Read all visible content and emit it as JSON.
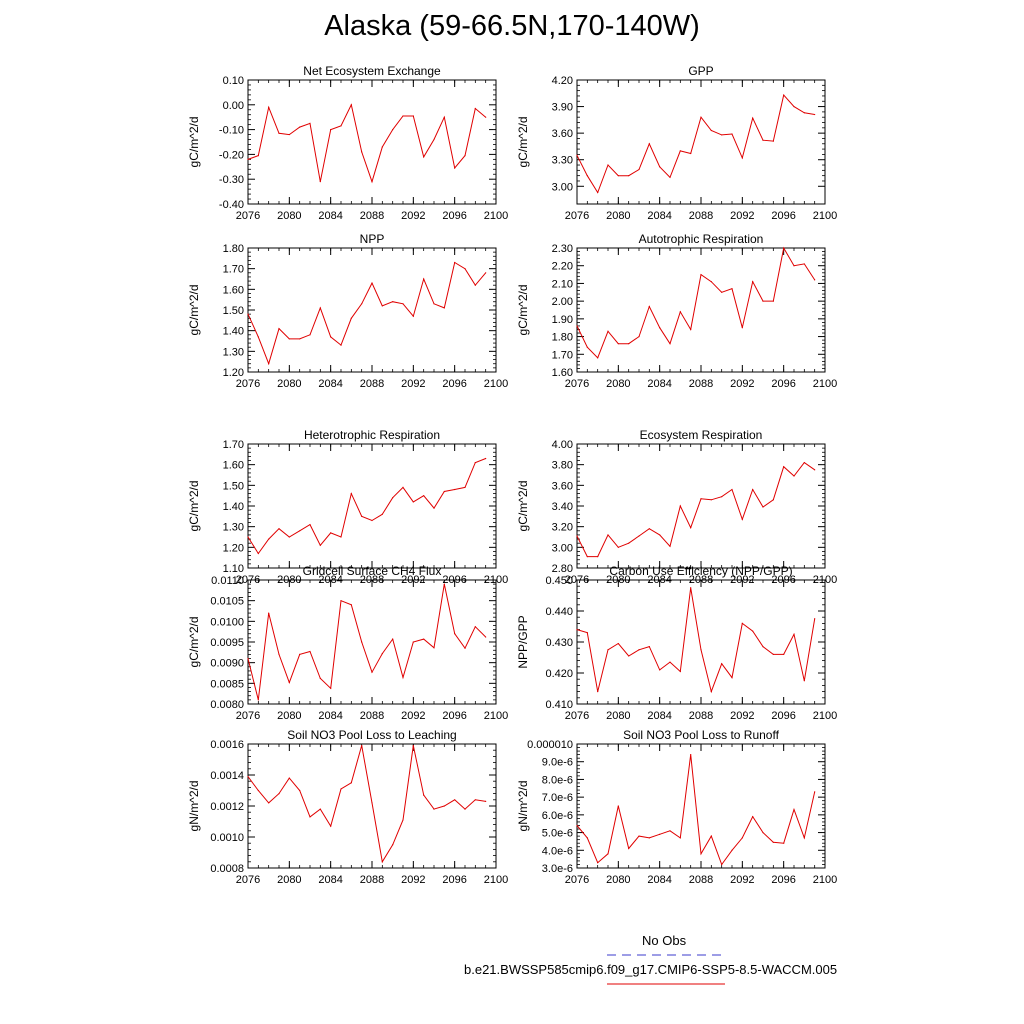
{
  "page": {
    "title": "Alaska (59-66.5N,170-140W)"
  },
  "legend": {
    "obs_label": "No Obs",
    "model_label": "b.e21.BWSSP585cmip6.f09_g17.CMIP6-SSP5-8.5-WACCM.005",
    "obs_color": "#3b3bcc",
    "model_color": "#e00000"
  },
  "chart_data": [
    {
      "type": "line",
      "title": "Net Ecosystem Exchange",
      "ylabel": "gC/m^2/d",
      "xlim": [
        2076,
        2100
      ],
      "ylim": [
        -0.4,
        0.1
      ],
      "xticks": [
        2076,
        2080,
        2084,
        2088,
        2092,
        2096,
        2100
      ],
      "xtick_labels": [
        "2076",
        "2080",
        "2084",
        "2088",
        "2092",
        "2096",
        "2100"
      ],
      "yticks": [
        -0.4,
        -0.3,
        -0.2,
        -0.1,
        0.0,
        0.1
      ],
      "ytick_labels": [
        "-0.40",
        "-0.30",
        "-0.20",
        "-0.10",
        "0.00",
        "0.10"
      ],
      "x": [
        2076,
        2077,
        2078,
        2079,
        2080,
        2081,
        2082,
        2083,
        2084,
        2085,
        2086,
        2087,
        2088,
        2089,
        2090,
        2091,
        2092,
        2093,
        2094,
        2095,
        2096,
        2097,
        2098,
        2099
      ],
      "y": [
        -0.22,
        -0.205,
        -0.01,
        -0.115,
        -0.12,
        -0.09,
        -0.075,
        -0.31,
        -0.1,
        -0.085,
        0.0,
        -0.19,
        -0.31,
        -0.17,
        -0.1,
        -0.045,
        -0.045,
        -0.21,
        -0.14,
        -0.05,
        -0.255,
        -0.205,
        -0.015,
        -0.05
      ]
    },
    {
      "type": "line",
      "title": "GPP",
      "ylabel": "gC/m^2/d",
      "xlim": [
        2076,
        2100
      ],
      "ylim": [
        2.8,
        4.2
      ],
      "xticks": [
        2076,
        2080,
        2084,
        2088,
        2092,
        2096,
        2100
      ],
      "xtick_labels": [
        "2076",
        "2080",
        "2084",
        "2088",
        "2092",
        "2096",
        "2100"
      ],
      "yticks": [
        3.0,
        3.3,
        3.6,
        3.9,
        4.2
      ],
      "ytick_labels": [
        "3.00",
        "3.30",
        "3.60",
        "3.90",
        "4.20"
      ],
      "x": [
        2076,
        2077,
        2078,
        2079,
        2080,
        2081,
        2082,
        2083,
        2084,
        2085,
        2086,
        2087,
        2088,
        2089,
        2090,
        2091,
        2092,
        2093,
        2094,
        2095,
        2096,
        2097,
        2098,
        2099
      ],
      "y": [
        3.35,
        3.12,
        2.93,
        3.24,
        3.12,
        3.12,
        3.19,
        3.48,
        3.22,
        3.1,
        3.4,
        3.37,
        3.78,
        3.63,
        3.58,
        3.59,
        3.32,
        3.77,
        3.52,
        3.51,
        4.03,
        3.9,
        3.83,
        3.81
      ]
    },
    {
      "type": "line",
      "title": "NPP",
      "ylabel": "gC/m^2/d",
      "xlim": [
        2076,
        2100
      ],
      "ylim": [
        1.2,
        1.8
      ],
      "xticks": [
        2076,
        2080,
        2084,
        2088,
        2092,
        2096,
        2100
      ],
      "xtick_labels": [
        "2076",
        "2080",
        "2084",
        "2088",
        "2092",
        "2096",
        "2100"
      ],
      "yticks": [
        1.2,
        1.3,
        1.4,
        1.5,
        1.6,
        1.7,
        1.8
      ],
      "ytick_labels": [
        "1.20",
        "1.30",
        "1.40",
        "1.50",
        "1.60",
        "1.70",
        "1.80"
      ],
      "x": [
        2076,
        2077,
        2078,
        2079,
        2080,
        2081,
        2082,
        2083,
        2084,
        2085,
        2086,
        2087,
        2088,
        2089,
        2090,
        2091,
        2092,
        2093,
        2094,
        2095,
        2096,
        2097,
        2098,
        2099
      ],
      "y": [
        1.48,
        1.37,
        1.24,
        1.41,
        1.36,
        1.36,
        1.38,
        1.51,
        1.37,
        1.33,
        1.46,
        1.53,
        1.63,
        1.52,
        1.54,
        1.53,
        1.47,
        1.65,
        1.53,
        1.51,
        1.73,
        1.7,
        1.62,
        1.68
      ]
    },
    {
      "type": "line",
      "title": "Autotrophic Respiration",
      "ylabel": "gC/m^2/d",
      "xlim": [
        2076,
        2100
      ],
      "ylim": [
        1.6,
        2.3
      ],
      "xticks": [
        2076,
        2080,
        2084,
        2088,
        2092,
        2096,
        2100
      ],
      "xtick_labels": [
        "2076",
        "2080",
        "2084",
        "2088",
        "2092",
        "2096",
        "2100"
      ],
      "yticks": [
        1.6,
        1.7,
        1.8,
        1.9,
        2.0,
        2.1,
        2.2,
        2.3
      ],
      "ytick_labels": [
        "1.60",
        "1.70",
        "1.80",
        "1.90",
        "2.00",
        "2.10",
        "2.20",
        "2.30"
      ],
      "x": [
        2076,
        2077,
        2078,
        2079,
        2080,
        2081,
        2082,
        2083,
        2084,
        2085,
        2086,
        2087,
        2088,
        2089,
        2090,
        2091,
        2092,
        2093,
        2094,
        2095,
        2096,
        2097,
        2098,
        2099
      ],
      "y": [
        1.86,
        1.74,
        1.68,
        1.83,
        1.76,
        1.76,
        1.8,
        1.97,
        1.85,
        1.76,
        1.94,
        1.84,
        2.15,
        2.11,
        2.05,
        2.07,
        1.85,
        2.11,
        2.0,
        2.0,
        2.3,
        2.2,
        2.21,
        2.12
      ]
    },
    {
      "type": "line",
      "title": "Heterotrophic Respiration",
      "ylabel": "gC/m^2/d",
      "xlim": [
        2076,
        2100
      ],
      "ylim": [
        1.1,
        1.7
      ],
      "xticks": [
        2076,
        2080,
        2084,
        2088,
        2092,
        2096,
        2100
      ],
      "xtick_labels": [
        "2076",
        "2080",
        "2084",
        "2088",
        "2092",
        "2096",
        "2100"
      ],
      "yticks": [
        1.1,
        1.2,
        1.3,
        1.4,
        1.5,
        1.6,
        1.7
      ],
      "ytick_labels": [
        "1.10",
        "1.20",
        "1.30",
        "1.40",
        "1.50",
        "1.60",
        "1.70"
      ],
      "x": [
        2076,
        2077,
        2078,
        2079,
        2080,
        2081,
        2082,
        2083,
        2084,
        2085,
        2086,
        2087,
        2088,
        2089,
        2090,
        2091,
        2092,
        2093,
        2094,
        2095,
        2096,
        2097,
        2098,
        2099
      ],
      "y": [
        1.25,
        1.17,
        1.24,
        1.29,
        1.25,
        1.28,
        1.31,
        1.21,
        1.27,
        1.25,
        1.46,
        1.35,
        1.33,
        1.36,
        1.44,
        1.49,
        1.42,
        1.45,
        1.39,
        1.47,
        1.48,
        1.49,
        1.61,
        1.63
      ]
    },
    {
      "type": "line",
      "title": "Ecosystem Respiration",
      "ylabel": "gC/m^2/d",
      "xlim": [
        2076,
        2100
      ],
      "ylim": [
        2.8,
        4.0
      ],
      "xticks": [
        2076,
        2080,
        2084,
        2088,
        2092,
        2096,
        2100
      ],
      "xtick_labels": [
        "2076",
        "2080",
        "2084",
        "2088",
        "2092",
        "2096",
        "2100"
      ],
      "yticks": [
        2.8,
        3.0,
        3.2,
        3.4,
        3.6,
        3.8,
        4.0
      ],
      "ytick_labels": [
        "2.80",
        "3.00",
        "3.20",
        "3.40",
        "3.60",
        "3.80",
        "4.00"
      ],
      "x": [
        2076,
        2077,
        2078,
        2079,
        2080,
        2081,
        2082,
        2083,
        2084,
        2085,
        2086,
        2087,
        2088,
        2089,
        2090,
        2091,
        2092,
        2093,
        2094,
        2095,
        2096,
        2097,
        2098,
        2099
      ],
      "y": [
        3.11,
        2.91,
        2.91,
        3.12,
        3.0,
        3.04,
        3.11,
        3.18,
        3.12,
        3.01,
        3.4,
        3.19,
        3.47,
        3.46,
        3.49,
        3.56,
        3.27,
        3.56,
        3.39,
        3.46,
        3.78,
        3.69,
        3.82,
        3.75
      ]
    },
    {
      "type": "line",
      "title": "Gridcell Surface CH4 Flux",
      "ylabel": "gC/m^2/d",
      "xlim": [
        2076,
        2100
      ],
      "ylim": [
        0.008,
        0.011
      ],
      "xticks": [
        2076,
        2080,
        2084,
        2088,
        2092,
        2096,
        2100
      ],
      "xtick_labels": [
        "2076",
        "2080",
        "2084",
        "2088",
        "2092",
        "2096",
        "2100"
      ],
      "yticks": [
        0.008,
        0.0085,
        0.009,
        0.0095,
        0.01,
        0.0105,
        0.011
      ],
      "ytick_labels": [
        "0.0080",
        "0.0085",
        "0.0090",
        "0.0095",
        "0.0100",
        "0.0105",
        "0.0110"
      ],
      "x": [
        2076,
        2077,
        2078,
        2079,
        2080,
        2081,
        2082,
        2083,
        2084,
        2085,
        2086,
        2087,
        2088,
        2089,
        2090,
        2091,
        2092,
        2093,
        2094,
        2095,
        2096,
        2097,
        2098,
        2099
      ],
      "y": [
        0.0091,
        0.0081,
        0.0102,
        0.0092,
        0.00852,
        0.0092,
        0.00927,
        0.00862,
        0.00838,
        0.0105,
        0.0104,
        0.0095,
        0.00877,
        0.00922,
        0.00957,
        0.00864,
        0.0095,
        0.00957,
        0.00936,
        0.0109,
        0.0097,
        0.00935,
        0.00987,
        0.00962
      ]
    },
    {
      "type": "line",
      "title": "Carbon Use Efficiency (NPP/GPP)",
      "ylabel": "NPP/GPP",
      "xlim": [
        2076,
        2100
      ],
      "ylim": [
        0.41,
        0.45
      ],
      "xticks": [
        2076,
        2080,
        2084,
        2088,
        2092,
        2096,
        2100
      ],
      "xtick_labels": [
        "2076",
        "2080",
        "2084",
        "2088",
        "2092",
        "2096",
        "2100"
      ],
      "yticks": [
        0.41,
        0.42,
        0.43,
        0.44,
        0.45
      ],
      "ytick_labels": [
        "0.410",
        "0.420",
        "0.430",
        "0.440",
        "0.450"
      ],
      "x": [
        2076,
        2077,
        2078,
        2079,
        2080,
        2081,
        2082,
        2083,
        2084,
        2085,
        2086,
        2087,
        2088,
        2089,
        2090,
        2091,
        2092,
        2093,
        2094,
        2095,
        2096,
        2097,
        2098,
        2099
      ],
      "y": [
        0.434,
        0.433,
        0.414,
        0.4275,
        0.4295,
        0.4255,
        0.4275,
        0.4285,
        0.421,
        0.4235,
        0.4205,
        0.4475,
        0.4275,
        0.414,
        0.423,
        0.4185,
        0.436,
        0.4335,
        0.4285,
        0.426,
        0.426,
        0.4325,
        0.4175,
        0.4375
      ]
    },
    {
      "type": "line",
      "title": "Soil NO3 Pool Loss to Leaching",
      "ylabel": "gN/m^2/d",
      "xlim": [
        2076,
        2100
      ],
      "ylim": [
        0.0008,
        0.0016
      ],
      "xticks": [
        2076,
        2080,
        2084,
        2088,
        2092,
        2096,
        2100
      ],
      "xtick_labels": [
        "2076",
        "2080",
        "2084",
        "2088",
        "2092",
        "2096",
        "2100"
      ],
      "yticks": [
        0.0008,
        0.001,
        0.0012,
        0.0014,
        0.0016
      ],
      "ytick_labels": [
        "0.0008",
        "0.0010",
        "0.0012",
        "0.0014",
        "0.0016"
      ],
      "x": [
        2076,
        2077,
        2078,
        2079,
        2080,
        2081,
        2082,
        2083,
        2084,
        2085,
        2086,
        2087,
        2088,
        2089,
        2090,
        2091,
        2092,
        2093,
        2094,
        2095,
        2096,
        2097,
        2098,
        2099
      ],
      "y": [
        0.00139,
        0.0013,
        0.00122,
        0.00128,
        0.00138,
        0.0013,
        0.00113,
        0.00118,
        0.00107,
        0.00131,
        0.00135,
        0.00159,
        0.00122,
        0.00084,
        0.00095,
        0.00111,
        0.00159,
        0.00127,
        0.00118,
        0.0012,
        0.00124,
        0.00118,
        0.00124,
        0.00123
      ]
    },
    {
      "type": "line",
      "title": "Soil NO3 Pool Loss to Runoff",
      "ylabel": "gN/m^2/d",
      "xlim": [
        2076,
        2100
      ],
      "ylim": [
        3e-06,
        1e-05
      ],
      "xticks": [
        2076,
        2080,
        2084,
        2088,
        2092,
        2096,
        2100
      ],
      "xtick_labels": [
        "2076",
        "2080",
        "2084",
        "2088",
        "2092",
        "2096",
        "2100"
      ],
      "yticks": [
        3e-06,
        4e-06,
        5e-06,
        6e-06,
        7e-06,
        8e-06,
        9e-06,
        1e-05
      ],
      "ytick_labels": [
        "3.0e-6",
        "4.0e-6",
        "5.0e-6",
        "6.0e-6",
        "7.0e-6",
        "8.0e-6",
        "9.0e-6",
        "0.000010"
      ],
      "x": [
        2076,
        2077,
        2078,
        2079,
        2080,
        2081,
        2082,
        2083,
        2084,
        2085,
        2086,
        2087,
        2088,
        2089,
        2090,
        2091,
        2092,
        2093,
        2094,
        2095,
        2096,
        2097,
        2098,
        2099
      ],
      "y": [
        5.4e-06,
        4.7e-06,
        3.3e-06,
        3.8e-06,
        6.5e-06,
        4.1e-06,
        4.8e-06,
        4.7e-06,
        4.9e-06,
        5.1e-06,
        4.7e-06,
        9.4e-06,
        3.8e-06,
        4.8e-06,
        3.2e-06,
        4e-06,
        4.7e-06,
        5.9e-06,
        5e-06,
        4.45e-06,
        4.4e-06,
        6.3e-06,
        4.7e-06,
        7.3e-06
      ]
    }
  ]
}
